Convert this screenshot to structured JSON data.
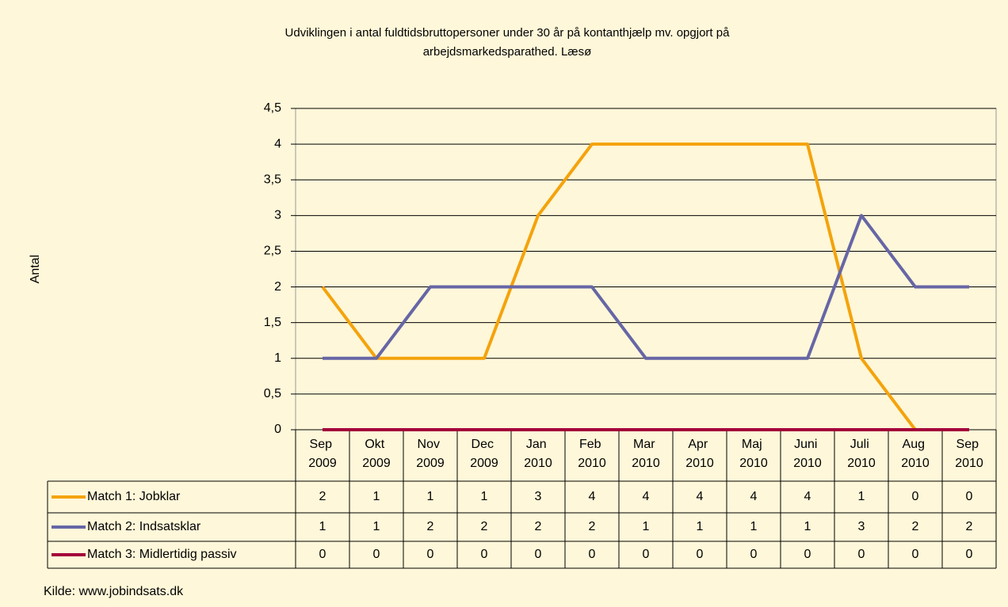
{
  "chart_data": {
    "type": "line",
    "title": "Udviklingen i antal fuldtidsbruttopersoner under 30 år på kontanthjælp mv. opgjort på arbejdsmarkedsparathed. Læsø",
    "y_label": "Antal",
    "source": "Kilde: www.jobindsats.dk",
    "categories": [
      "Sep 2009",
      "Okt 2009",
      "Nov 2009",
      "Dec 2009",
      "Jan 2010",
      "Feb 2010",
      "Mar 2010",
      "Apr 2010",
      "Maj 2010",
      "Juni 2010",
      "Juli 2010",
      "Aug 2010",
      "Sep 2010"
    ],
    "series": [
      {
        "name": "Match 1: Jobklar",
        "color": "#f4a30c",
        "values": [
          2,
          1,
          1,
          1,
          3,
          4,
          4,
          4,
          4,
          4,
          1,
          0,
          0
        ]
      },
      {
        "name": "Match 2: Indsatsklar",
        "color": "#6666a6",
        "values": [
          1,
          1,
          2,
          2,
          2,
          2,
          1,
          1,
          1,
          1,
          3,
          2,
          2
        ]
      },
      {
        "name": "Match 3: Midlertidig passiv",
        "color": "#a3003a",
        "values": [
          0,
          0,
          0,
          0,
          0,
          0,
          0,
          0,
          0,
          0,
          0,
          0,
          0
        ]
      }
    ],
    "ylim": [
      0,
      4.5
    ],
    "yticks": [
      0,
      {
        "value": 0.5,
        "label": "0,5"
      },
      1,
      {
        "value": 1.5,
        "label": "1,5"
      },
      2,
      {
        "value": 2.5,
        "label": "2,5"
      },
      3,
      {
        "value": 3.5,
        "label": "3,5"
      },
      4,
      {
        "value": 4.5,
        "label": "4,5"
      }
    ],
    "grid": true,
    "data_table": true
  }
}
